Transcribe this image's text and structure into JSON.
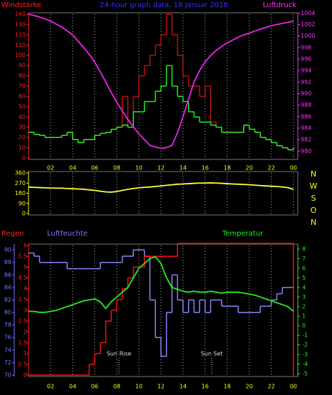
{
  "chart_data": [
    {
      "type": "line",
      "title": "24-hour graph data, 18 Januar 2018",
      "ylabel": "Windstärke",
      "y2label": "Luftdruck",
      "title_color": "#3333ff",
      "ycolor": "#ff2020",
      "y2color": "#ff33ff",
      "xcolor": "#ffff00",
      "grid": "x",
      "show_xtick_labels": true,
      "xlim": [
        0,
        24.4
      ],
      "xticks": [
        {
          "value": 2,
          "label": "02"
        },
        {
          "value": 4,
          "label": "04"
        },
        {
          "value": 6,
          "label": "06"
        },
        {
          "value": 8,
          "label": "08"
        },
        10,
        12,
        14,
        16,
        18,
        20,
        22,
        {
          "value": 24,
          "label": "00"
        }
      ],
      "ylim": [
        0,
        140
      ],
      "yticks": [
        0,
        10,
        20,
        30,
        40,
        50,
        60,
        70,
        80,
        90,
        100,
        110,
        120,
        130,
        140
      ],
      "y2lim": [
        978.8,
        1003.8
      ],
      "y2ticks": [
        980,
        982,
        984,
        986,
        988,
        990,
        992,
        994,
        996,
        998,
        1000,
        1002,
        1004
      ],
      "x": [
        0,
        0.5,
        1,
        1.5,
        2,
        2.5,
        3,
        3.5,
        4,
        4.5,
        5,
        5.5,
        6,
        6.5,
        7,
        7.5,
        8,
        8.5,
        9,
        9.5,
        10,
        10.5,
        11,
        11.5,
        12,
        12.5,
        13,
        13.5,
        14,
        14.5,
        15,
        15.5,
        16,
        16.5,
        17,
        17.5,
        18,
        18.5,
        19,
        19.5,
        20,
        20.5,
        21,
        21.5,
        22,
        22.5,
        23,
        23.5,
        24
      ],
      "series": [
        {
          "color": "#c01010",
          "style": "step",
          "axis": "y",
          "values": [
            25,
            23,
            22,
            20,
            20,
            20,
            22,
            25,
            18,
            15,
            18,
            18,
            22,
            24,
            25,
            28,
            30,
            60,
            30,
            60,
            80,
            90,
            100,
            110,
            120,
            140,
            120,
            100,
            80,
            70,
            70,
            60,
            70,
            35,
            30,
            25,
            25,
            25,
            25,
            32,
            28,
            25,
            20,
            18,
            15,
            12,
            10,
            8,
            10
          ]
        },
        {
          "color": "#22ee22",
          "style": "step",
          "axis": "y",
          "values": [
            25,
            23,
            22,
            20,
            20,
            20,
            22,
            25,
            18,
            15,
            18,
            18,
            22,
            24,
            25,
            28,
            30,
            32,
            30,
            45,
            45,
            55,
            55,
            65,
            70,
            90,
            70,
            60,
            55,
            45,
            40,
            35,
            35,
            32,
            30,
            25,
            25,
            25,
            25,
            32,
            28,
            25,
            20,
            18,
            15,
            12,
            10,
            8,
            10
          ]
        },
        {
          "color": "#ee22ee",
          "style": "line",
          "axis": "y2",
          "values": [
            1003.8,
            1003.6,
            1003.3,
            1003.0,
            1002.6,
            1002.1,
            1001.6,
            1000.9,
            1000.2,
            999.1,
            998,
            996.8,
            995.5,
            993.8,
            992,
            990.2,
            988.5,
            987,
            985.5,
            984.2,
            983,
            982,
            981,
            980.7,
            980.5,
            980.6,
            981,
            983.2,
            986,
            989,
            992,
            994,
            995.5,
            996.6,
            997.5,
            998.2,
            998.8,
            999.3,
            999.8,
            1000.2,
            1000.5,
            1000.9,
            1001.2,
            1001.5,
            1001.8,
            1002,
            1002.2,
            1002.4,
            1002.6
          ]
        }
      ]
    },
    {
      "type": "line",
      "ycolor": "#ffff00",
      "xcolor": "#ffff00",
      "grid": "x",
      "show_xtick_labels": false,
      "direction_labels": [
        "N",
        "W",
        "S",
        "O",
        "N"
      ],
      "xlim": [
        0,
        24.4
      ],
      "xticks": [
        {
          "value": 2,
          "label": "02"
        },
        {
          "value": 4,
          "label": "04"
        },
        {
          "value": 6,
          "label": "06"
        },
        {
          "value": 8,
          "label": "08"
        },
        10,
        12,
        14,
        16,
        18,
        20,
        22,
        {
          "value": 24,
          "label": "00"
        }
      ],
      "ylim": [
        0,
        360
      ],
      "yticks": [
        0,
        90,
        180,
        270,
        360
      ],
      "x": [
        0,
        0.5,
        1,
        1.5,
        2,
        2.5,
        3,
        3.5,
        4,
        4.5,
        5,
        5.5,
        6,
        6.5,
        7,
        7.5,
        8,
        8.5,
        9,
        9.5,
        10,
        10.5,
        11,
        11.5,
        12,
        12.5,
        13,
        13.5,
        14,
        14.5,
        15,
        15.5,
        16,
        16.5,
        17,
        17.5,
        18,
        18.5,
        19,
        19.5,
        20,
        20.5,
        21,
        21.5,
        22,
        22.5,
        23,
        23.5,
        24
      ],
      "series": [
        {
          "color": "#ffff33",
          "style": "line",
          "axis": "y",
          "values": [
            235,
            232,
            230,
            228,
            226,
            225,
            225,
            222,
            220,
            218,
            215,
            210,
            205,
            198,
            192,
            190,
            195,
            205,
            215,
            222,
            228,
            232,
            235,
            240,
            245,
            250,
            255,
            260,
            262,
            265,
            268,
            270,
            270,
            272,
            270,
            268,
            265,
            262,
            260,
            258,
            255,
            252,
            248,
            245,
            242,
            240,
            235,
            230,
            215
          ]
        }
      ]
    },
    {
      "type": "line",
      "ylabel": "Regen",
      "y2label": "Luftfeuchte",
      "y3label": "Temperatur",
      "ycolor": "#ff2020",
      "y2color": "#7777ff",
      "y3color": "#22ee22",
      "xcolor": "#ffff00",
      "grid": "x",
      "show_xtick_labels": true,
      "xlim": [
        0,
        24.4
      ],
      "xticks": [
        {
          "value": 2,
          "label": "02"
        },
        {
          "value": 4,
          "label": "04"
        },
        {
          "value": 6,
          "label": "06"
        },
        {
          "value": 8,
          "label": "08"
        },
        10,
        12,
        14,
        16,
        18,
        20,
        22,
        {
          "value": 24,
          "label": "00"
        }
      ],
      "ylim": [
        0,
        6
      ],
      "yticks": [
        0,
        0.5,
        1,
        1.5,
        2,
        2.5,
        3,
        3.5,
        4,
        4.5,
        5,
        5.5,
        6
      ],
      "y2lim": [
        70,
        90.7
      ],
      "y2ticks": [
        70,
        72,
        74,
        76,
        78,
        80,
        82,
        84,
        86,
        88,
        90
      ],
      "y3lim": [
        -5.15,
        8.37
      ],
      "y3ticks": [
        -5,
        -4,
        -3,
        -2,
        -1,
        0,
        1,
        2,
        3,
        4,
        5,
        6,
        7,
        8
      ],
      "annotations": [
        {
          "text": "Sun Rise",
          "x": 8.2
        },
        {
          "text": "Sun Set",
          "x": 16.6
        }
      ],
      "x": [
        0,
        0.5,
        1,
        1.5,
        2,
        2.5,
        3,
        3.5,
        4,
        4.5,
        5,
        5.5,
        6,
        6.5,
        7,
        7.5,
        8,
        8.5,
        9,
        9.5,
        10,
        10.5,
        11,
        11.5,
        12,
        12.5,
        13,
        13.5,
        14,
        14.5,
        15,
        15.5,
        16,
        16.5,
        17,
        17.5,
        18,
        18.5,
        19,
        19.5,
        20,
        20.5,
        21,
        21.5,
        22,
        22.5,
        23,
        23.5,
        24
      ],
      "series": [
        {
          "color": "#8888ff",
          "style": "step",
          "axis": "y2",
          "values": [
            89.5,
            89,
            88,
            88,
            88,
            88,
            88,
            87,
            87,
            87,
            87,
            87,
            87,
            88,
            88,
            88,
            88,
            89,
            89,
            90,
            90,
            89,
            82,
            76,
            73,
            80,
            86,
            82,
            80,
            82,
            80,
            82,
            80,
            82,
            82,
            81,
            81,
            81,
            80,
            80,
            80,
            80,
            81,
            81,
            82,
            83,
            84,
            84,
            84
          ]
        },
        {
          "color": "#ff1010",
          "style": "step",
          "axis": "y",
          "values": [
            0,
            0,
            0,
            0,
            0,
            0,
            0,
            0,
            0,
            0,
            0,
            0.5,
            1,
            1.5,
            2.5,
            3,
            3.5,
            4,
            4.5,
            5,
            5,
            5.5,
            5.5,
            5.5,
            5.5,
            5.5,
            5.5,
            6.1,
            6.1,
            6.1,
            6.1,
            6.1,
            6.1,
            6.1,
            6.1,
            6.1,
            6.1,
            6.1,
            6.1,
            6.1,
            6.1,
            6.1,
            6.1,
            6.1,
            6.1,
            6.1,
            6.1,
            6.1,
            0
          ]
        },
        {
          "color": "#22ee22",
          "style": "line",
          "axis": "y3",
          "values": [
            1.5,
            1.5,
            1.4,
            1.4,
            1.5,
            1.6,
            1.8,
            2,
            2.2,
            2.4,
            2.6,
            2.7,
            2.8,
            2.5,
            1.8,
            2.5,
            3,
            3.5,
            4,
            5,
            6,
            6.5,
            7,
            7.2,
            6.5,
            5,
            4,
            3.8,
            3.6,
            3.5,
            3.6,
            3.5,
            3.5,
            3.6,
            3.5,
            3.4,
            3.5,
            3.5,
            3.5,
            3.4,
            3.3,
            3.2,
            3,
            2.8,
            2.6,
            2.4,
            2.2,
            2,
            1.5
          ]
        }
      ]
    }
  ]
}
